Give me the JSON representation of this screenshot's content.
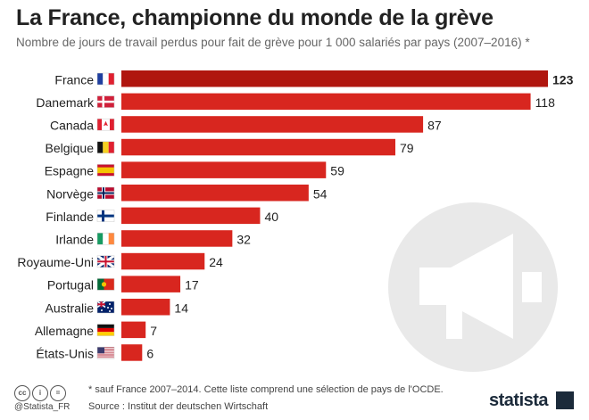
{
  "header": {
    "title": "La France, championne du monde de la grève",
    "subtitle": "Nombre de jours de travail perdus pour fait de grève pour 1 000 salariés par pays (2007–2016) *"
  },
  "footer": {
    "note": "* sauf France 2007–2014. Cette liste comprend une sélection de pays de l'OCDE.",
    "source": "Source : Institut der deutschen Wirtschaft",
    "handle": "@Statista_FR",
    "brand": "statista",
    "license_icons": [
      "cc",
      "i",
      "="
    ]
  },
  "colors": {
    "bar": "#d8261f",
    "bar_highlight": "#b0160f"
  },
  "chart_data": {
    "type": "bar",
    "orientation": "horizontal",
    "title": "La France, championne du monde de la grève",
    "subtitle": "Nombre de jours de travail perdus pour fait de grève pour 1 000 salariés par pays (2007–2016) *",
    "categories": [
      "France",
      "Danemark",
      "Canada",
      "Belgique",
      "Espagne",
      "Norvège",
      "Finlande",
      "Irlande",
      "Royaume-Uni",
      "Portugal",
      "Australie",
      "Allemagne",
      "États-Unis"
    ],
    "values": [
      123,
      118,
      87,
      79,
      59,
      54,
      40,
      32,
      24,
      17,
      14,
      7,
      6
    ],
    "flags": [
      "france-flag",
      "denmark-flag",
      "canada-flag",
      "belgium-flag",
      "spain-flag",
      "norway-flag",
      "finland-flag",
      "ireland-flag",
      "uk-flag",
      "portugal-flag",
      "australia-flag",
      "germany-flag",
      "usa-flag"
    ],
    "xlim": [
      0,
      123
    ],
    "grid": false,
    "highlight": "France"
  }
}
